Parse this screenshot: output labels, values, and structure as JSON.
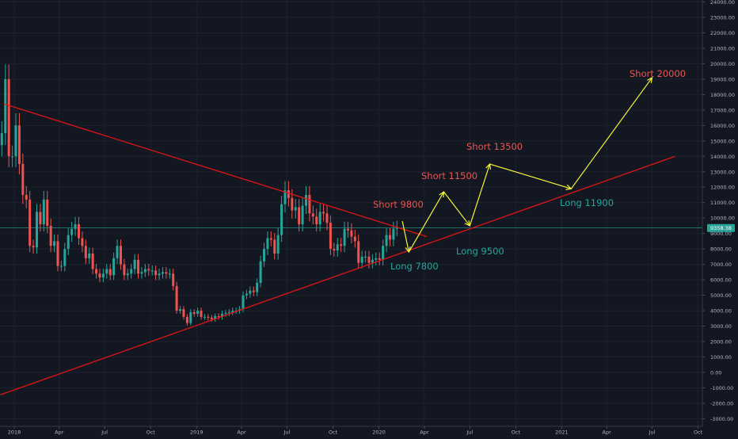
{
  "chart_data": {
    "type": "candlestick",
    "title": "",
    "xlabel": "",
    "ylabel": "",
    "ylim": [
      -3300,
      24200
    ],
    "y_ticks": [
      "24000.00",
      "23000.00",
      "22000.00",
      "21000.00",
      "20000.00",
      "19000.00",
      "18000.00",
      "17000.00",
      "16000.00",
      "15000.00",
      "14000.00",
      "13000.00",
      "12000.00",
      "11000.00",
      "10000.00",
      "9000.00",
      "8000.00",
      "7000.00",
      "6000.00",
      "5000.00",
      "4000.00",
      "3000.00",
      "2000.00",
      "1000.00",
      "0.00",
      "-1000.00",
      "-2000.00",
      "-3000.00"
    ],
    "x_ticks": [
      {
        "label": "2018",
        "date": "2018-01-01"
      },
      {
        "label": "Apr",
        "date": "2018-04-01"
      },
      {
        "label": "Jul",
        "date": "2018-07-01"
      },
      {
        "label": "Oct",
        "date": "2018-10-01"
      },
      {
        "label": "2019",
        "date": "2019-01-01"
      },
      {
        "label": "Apr",
        "date": "2019-04-01"
      },
      {
        "label": "Jul",
        "date": "2019-07-01"
      },
      {
        "label": "Oct",
        "date": "2019-10-01"
      },
      {
        "label": "2020",
        "date": "2020-01-01"
      },
      {
        "label": "Apr",
        "date": "2020-04-01"
      },
      {
        "label": "Jul",
        "date": "2020-07-01"
      },
      {
        "label": "Oct",
        "date": "2020-10-01"
      },
      {
        "label": "2021",
        "date": "2021-01-01"
      },
      {
        "label": "Apr",
        "date": "2021-04-01"
      },
      {
        "label": "Jul",
        "date": "2021-07-01"
      },
      {
        "label": "Oct",
        "date": "2021-10-01"
      }
    ],
    "price_label": "9358.38",
    "current_price": 9358.38,
    "price_line_color": "#26a69a",
    "up_color": "#26a69a",
    "down_color": "#ef5350",
    "trendline_color": "#e31414",
    "projection_color": "#f5f53a",
    "short_label_color": "#ef5350",
    "long_label_color": "#26a69a",
    "candles_weekly_close": [
      {
        "date": "2017-12-04",
        "close": 15500
      },
      {
        "date": "2017-12-11",
        "close": 19000
      },
      {
        "date": "2017-12-18",
        "close": 14000
      },
      {
        "date": "2017-12-25",
        "close": 14000
      },
      {
        "date": "2018-01-01",
        "close": 16000
      },
      {
        "date": "2018-01-08",
        "close": 13500
      },
      {
        "date": "2018-01-15",
        "close": 11500
      },
      {
        "date": "2018-01-22",
        "close": 11200
      },
      {
        "date": "2018-01-29",
        "close": 8200
      },
      {
        "date": "2018-02-05",
        "close": 8100
      },
      {
        "date": "2018-02-12",
        "close": 10400
      },
      {
        "date": "2018-02-19",
        "close": 9600
      },
      {
        "date": "2018-02-26",
        "close": 11200
      },
      {
        "date": "2018-03-05",
        "close": 9500
      },
      {
        "date": "2018-03-12",
        "close": 8200
      },
      {
        "date": "2018-03-19",
        "close": 8500
      },
      {
        "date": "2018-03-26",
        "close": 6900
      },
      {
        "date": "2018-04-02",
        "close": 6900
      },
      {
        "date": "2018-04-09",
        "close": 8000
      },
      {
        "date": "2018-04-16",
        "close": 8900
      },
      {
        "date": "2018-04-23",
        "close": 9300
      },
      {
        "date": "2018-04-30",
        "close": 9600
      },
      {
        "date": "2018-05-07",
        "close": 8700
      },
      {
        "date": "2018-05-14",
        "close": 8200
      },
      {
        "date": "2018-05-21",
        "close": 7400
      },
      {
        "date": "2018-05-28",
        "close": 7700
      },
      {
        "date": "2018-06-04",
        "close": 6700
      },
      {
        "date": "2018-06-11",
        "close": 6400
      },
      {
        "date": "2018-06-18",
        "close": 6150
      },
      {
        "date": "2018-06-25",
        "close": 6400
      },
      {
        "date": "2018-07-02",
        "close": 6700
      },
      {
        "date": "2018-07-09",
        "close": 6300
      },
      {
        "date": "2018-07-16",
        "close": 7400
      },
      {
        "date": "2018-07-23",
        "close": 8200
      },
      {
        "date": "2018-07-30",
        "close": 7000
      },
      {
        "date": "2018-08-06",
        "close": 6300
      },
      {
        "date": "2018-08-13",
        "close": 6400
      },
      {
        "date": "2018-08-20",
        "close": 6700
      },
      {
        "date": "2018-08-27",
        "close": 7300
      },
      {
        "date": "2018-09-03",
        "close": 6400
      },
      {
        "date": "2018-09-10",
        "close": 6500
      },
      {
        "date": "2018-09-17",
        "close": 6700
      },
      {
        "date": "2018-09-24",
        "close": 6600
      },
      {
        "date": "2018-10-01",
        "close": 6600
      },
      {
        "date": "2018-10-08",
        "close": 6300
      },
      {
        "date": "2018-10-15",
        "close": 6400
      },
      {
        "date": "2018-10-22",
        "close": 6500
      },
      {
        "date": "2018-10-29",
        "close": 6400
      },
      {
        "date": "2018-11-05",
        "close": 6400
      },
      {
        "date": "2018-11-12",
        "close": 5600
      },
      {
        "date": "2018-11-19",
        "close": 4000
      },
      {
        "date": "2018-11-26",
        "close": 4100
      },
      {
        "date": "2018-12-03",
        "close": 3600
      },
      {
        "date": "2018-12-10",
        "close": 3200
      },
      {
        "date": "2018-12-17",
        "close": 3900
      },
      {
        "date": "2018-12-24",
        "close": 3800
      },
      {
        "date": "2018-12-31",
        "close": 4000
      },
      {
        "date": "2019-01-07",
        "close": 3600
      },
      {
        "date": "2019-01-14",
        "close": 3600
      },
      {
        "date": "2019-01-21",
        "close": 3550
      },
      {
        "date": "2019-01-28",
        "close": 3450
      },
      {
        "date": "2019-02-04",
        "close": 3650
      },
      {
        "date": "2019-02-11",
        "close": 3600
      },
      {
        "date": "2019-02-18",
        "close": 3800
      },
      {
        "date": "2019-02-25",
        "close": 3850
      },
      {
        "date": "2019-03-04",
        "close": 3900
      },
      {
        "date": "2019-03-11",
        "close": 4000
      },
      {
        "date": "2019-03-18",
        "close": 4000
      },
      {
        "date": "2019-03-25",
        "close": 4100
      },
      {
        "date": "2019-04-01",
        "close": 5000
      },
      {
        "date": "2019-04-08",
        "close": 5100
      },
      {
        "date": "2019-04-15",
        "close": 5300
      },
      {
        "date": "2019-04-22",
        "close": 5200
      },
      {
        "date": "2019-04-29",
        "close": 5800
      },
      {
        "date": "2019-05-06",
        "close": 7200
      },
      {
        "date": "2019-05-13",
        "close": 8000
      },
      {
        "date": "2019-05-20",
        "close": 8700
      },
      {
        "date": "2019-05-27",
        "close": 8600
      },
      {
        "date": "2019-06-03",
        "close": 7700
      },
      {
        "date": "2019-06-10",
        "close": 8900
      },
      {
        "date": "2019-06-17",
        "close": 10900
      },
      {
        "date": "2019-06-24",
        "close": 11800
      },
      {
        "date": "2019-07-01",
        "close": 11300
      },
      {
        "date": "2019-07-08",
        "close": 10500
      },
      {
        "date": "2019-07-15",
        "close": 10700
      },
      {
        "date": "2019-07-22",
        "close": 9600
      },
      {
        "date": "2019-07-29",
        "close": 10800
      },
      {
        "date": "2019-08-05",
        "close": 11500
      },
      {
        "date": "2019-08-12",
        "close": 10300
      },
      {
        "date": "2019-08-19",
        "close": 10100
      },
      {
        "date": "2019-08-26",
        "close": 9600
      },
      {
        "date": "2019-09-02",
        "close": 10400
      },
      {
        "date": "2019-09-09",
        "close": 10300
      },
      {
        "date": "2019-09-16",
        "close": 9700
      },
      {
        "date": "2019-09-23",
        "close": 8000
      },
      {
        "date": "2019-09-30",
        "close": 7900
      },
      {
        "date": "2019-10-07",
        "close": 8300
      },
      {
        "date": "2019-10-14",
        "close": 8200
      },
      {
        "date": "2019-10-21",
        "close": 9300
      },
      {
        "date": "2019-10-28",
        "close": 9200
      },
      {
        "date": "2019-11-04",
        "close": 8800
      },
      {
        "date": "2019-11-11",
        "close": 8500
      },
      {
        "date": "2019-11-18",
        "close": 7100
      },
      {
        "date": "2019-11-25",
        "close": 7500
      },
      {
        "date": "2019-12-02",
        "close": 7500
      },
      {
        "date": "2019-12-09",
        "close": 7100
      },
      {
        "date": "2019-12-16",
        "close": 7300
      },
      {
        "date": "2019-12-23",
        "close": 7400
      },
      {
        "date": "2019-12-30",
        "close": 7300
      },
      {
        "date": "2020-01-06",
        "close": 8200
      },
      {
        "date": "2020-01-13",
        "close": 8900
      },
      {
        "date": "2020-01-20",
        "close": 8600
      },
      {
        "date": "2020-01-27",
        "close": 9300
      },
      {
        "date": "2020-02-03",
        "close": 9358
      }
    ],
    "trendlines": [
      {
        "name": "descending-resistance",
        "start": {
          "date": "2017-12-11",
          "y": 17400
        },
        "end": {
          "date": "2020-04-06",
          "y": 8800
        }
      },
      {
        "name": "ascending-support",
        "start": {
          "date": "2017-12-04",
          "y": -1450
        },
        "end": {
          "date": "2021-08-16",
          "y": 14000
        }
      }
    ],
    "projection_path": [
      {
        "date": "2020-02-17",
        "y": 9800
      },
      {
        "date": "2020-03-01",
        "y": 7800
      },
      {
        "date": "2020-05-10",
        "y": 11700
      },
      {
        "date": "2020-07-01",
        "y": 9500
      },
      {
        "date": "2020-08-10",
        "y": 13500
      },
      {
        "date": "2021-01-20",
        "y": 11900
      },
      {
        "date": "2021-07-01",
        "y": 19100
      }
    ],
    "annotations": [
      {
        "text": "Short 20000",
        "type": "short"
      },
      {
        "text": "Short 13500",
        "type": "short"
      },
      {
        "text": "Short 11500",
        "type": "short"
      },
      {
        "text": "Short 9800",
        "type": "short"
      },
      {
        "text": "Long 11900",
        "type": "long"
      },
      {
        "text": "Long 9500",
        "type": "long"
      },
      {
        "text": "Long 7800",
        "type": "long"
      }
    ]
  }
}
